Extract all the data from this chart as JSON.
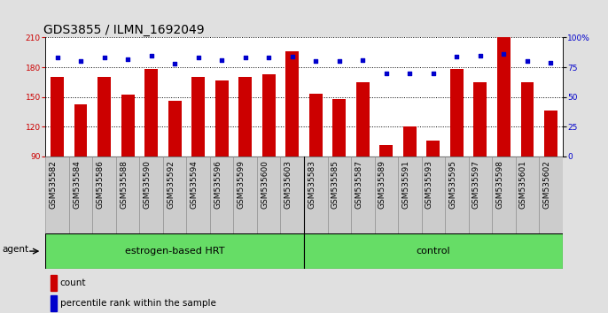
{
  "title": "GDS3855 / ILMN_1692049",
  "categories": [
    "GSM535582",
    "GSM535584",
    "GSM535586",
    "GSM535588",
    "GSM535590",
    "GSM535592",
    "GSM535594",
    "GSM535596",
    "GSM535599",
    "GSM535600",
    "GSM535603",
    "GSM535583",
    "GSM535585",
    "GSM535587",
    "GSM535589",
    "GSM535591",
    "GSM535593",
    "GSM535595",
    "GSM535597",
    "GSM535598",
    "GSM535601",
    "GSM535602"
  ],
  "bar_values": [
    170,
    143,
    170,
    152,
    178,
    146,
    170,
    167,
    170,
    173,
    196,
    153,
    148,
    165,
    102,
    120,
    106,
    178,
    165,
    210,
    165,
    136
  ],
  "dot_values": [
    83,
    80,
    83,
    82,
    85,
    78,
    83,
    81,
    83,
    83,
    84,
    80,
    80,
    81,
    70,
    70,
    70,
    84,
    85,
    86,
    80,
    79
  ],
  "bar_color": "#cc0000",
  "dot_color": "#0000cc",
  "ylim_left": [
    90,
    210
  ],
  "ylim_right": [
    0,
    100
  ],
  "yticks_left": [
    90,
    120,
    150,
    180,
    210
  ],
  "yticks_right": [
    0,
    25,
    50,
    75,
    100
  ],
  "ylabel_left_color": "#cc0000",
  "ylabel_right_color": "#0000cc",
  "group1_label": "estrogen-based HRT",
  "group2_label": "control",
  "group1_count": 11,
  "group2_count": 11,
  "group_bar_color": "#66dd66",
  "group_bar_edge": "#000000",
  "agent_label": "agent",
  "legend_count_label": "count",
  "legend_pct_label": "percentile rank within the sample",
  "fig_bg_color": "#e0e0e0",
  "plot_bg_color": "#ffffff",
  "xtick_bg_color": "#cccccc",
  "title_fontsize": 10,
  "tick_fontsize": 6.5,
  "group_fontsize": 8,
  "legend_fontsize": 7.5
}
